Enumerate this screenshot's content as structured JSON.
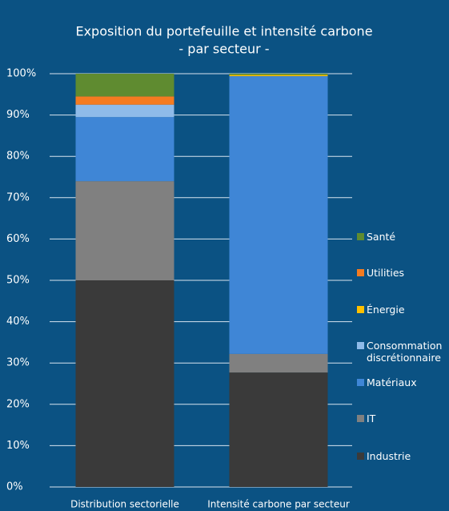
{
  "chart_data": {
    "type": "stacked_bar",
    "title": "Exposition du portefeuille et intensité carbone",
    "subtitle": "- par secteur -",
    "categories": [
      "Distribution sectorielle",
      "Intensité carbone par secteur"
    ],
    "series": [
      {
        "name": "Industrie",
        "color": "#3a3a3a",
        "values": [
          50,
          27.7
        ]
      },
      {
        "name": "IT",
        "color": "#808080",
        "values": [
          24,
          4.5
        ]
      },
      {
        "name": "Matériaux",
        "color": "#3f86d6",
        "values": [
          15.5,
          67.2
        ]
      },
      {
        "name": "Consommation discrétionnaire",
        "color": "#8fbbe9",
        "values": [
          3,
          0
        ]
      },
      {
        "name": "Énergie",
        "color": "#ffc000",
        "values": [
          0,
          0.3
        ]
      },
      {
        "name": "Utilities",
        "color": "#f47b20",
        "values": [
          2,
          0
        ]
      },
      {
        "name": "Santé",
        "color": "#5f8b30",
        "values": [
          5.5,
          0.3
        ]
      }
    ],
    "ylim": [
      0,
      100
    ],
    "yticks": [
      {
        "value": 0,
        "label": "0%"
      },
      {
        "value": 10,
        "label": "10%"
      },
      {
        "value": 20,
        "label": "20%"
      },
      {
        "value": 30,
        "label": "30%"
      },
      {
        "value": 40,
        "label": "40%"
      },
      {
        "value": 50,
        "label": "50%"
      },
      {
        "value": 60,
        "label": "60%"
      },
      {
        "value": 70,
        "label": "70%"
      },
      {
        "value": 80,
        "label": "80%"
      },
      {
        "value": 90,
        "label": "90%"
      },
      {
        "value": 100,
        "label": "100%"
      }
    ],
    "grid": true,
    "legend": "right"
  }
}
